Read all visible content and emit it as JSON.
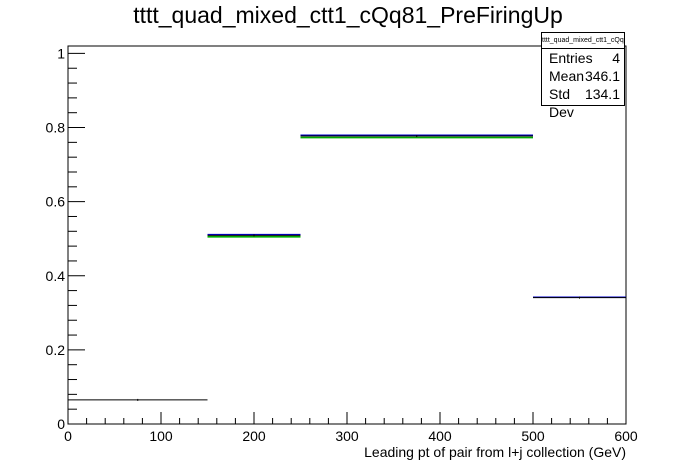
{
  "chart_data": {
    "type": "histogram",
    "title": "tttt_quad_mixed_ctt1_cQq81_PreFiringUp",
    "xlabel": "Leading pt of pair from l+j collection (GeV)",
    "ylabel": "",
    "xlim": [
      0,
      600
    ],
    "ylim": [
      0,
      1.02
    ],
    "x_ticks": [
      0,
      100,
      200,
      300,
      400,
      500,
      600
    ],
    "y_ticks": [
      0,
      0.2,
      0.4,
      0.6,
      0.8,
      1
    ],
    "x_tick_labels": [
      "0",
      "100",
      "200",
      "300",
      "400",
      "500",
      "600"
    ],
    "y_tick_labels": [
      "0",
      "0.2",
      "0.4",
      "0.6",
      "0.8",
      "1"
    ],
    "grid": false,
    "series": [
      {
        "color": "#000000",
        "bins": [
          [
            0,
            150,
            0.065
          ],
          [
            150,
            250,
            0.509
          ],
          [
            250,
            500,
            0.777
          ],
          [
            500,
            600,
            0.341
          ]
        ]
      },
      {
        "color": "#0000cc",
        "bins": [
          [
            150,
            250,
            0.511
          ],
          [
            250,
            500,
            0.779
          ],
          [
            500,
            600,
            0.342
          ]
        ]
      },
      {
        "color": "#00aa00",
        "bins": [
          [
            150,
            250,
            0.505
          ],
          [
            250,
            500,
            0.773
          ]
        ]
      }
    ],
    "stats_box": {
      "title": "tttt_quad_mixed_ctt1_cQq81_PreFiringUp",
      "rows": [
        {
          "label": "Entries",
          "value": "4"
        },
        {
          "label": "Mean",
          "value": "346.1"
        },
        {
          "label": "Std Dev",
          "value": "134.1"
        }
      ]
    }
  }
}
